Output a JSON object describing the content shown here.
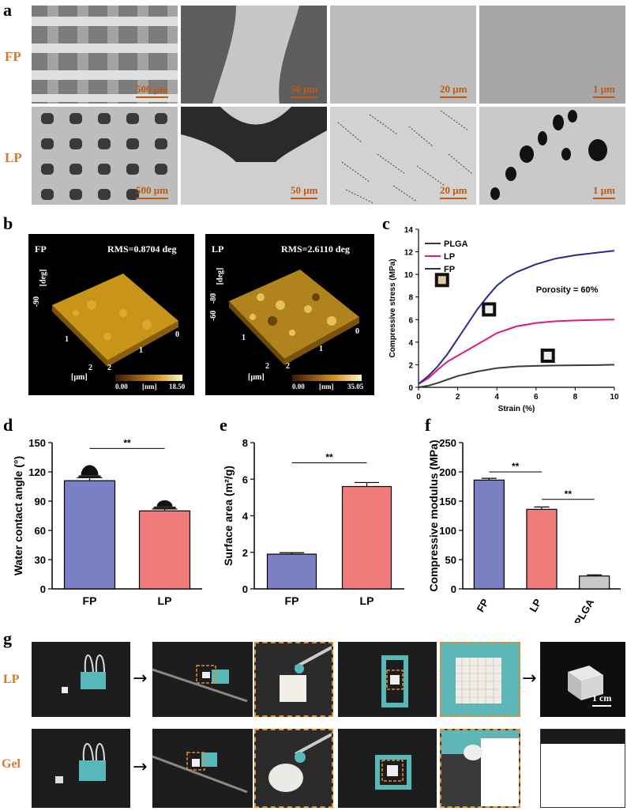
{
  "panels": {
    "a": "a",
    "b": "b",
    "c": "c",
    "d": "d",
    "e": "e",
    "f": "f",
    "g": "g"
  },
  "panel_a": {
    "rows": [
      {
        "label": "FP",
        "scales": [
          "500 μm",
          "50 μm",
          "20 μm",
          "1 μm"
        ]
      },
      {
        "label": "LP",
        "scales": [
          "500 μm",
          "50 μm",
          "20 μm",
          "1 μm"
        ]
      }
    ]
  },
  "panel_b": {
    "maps": [
      {
        "sample": "FP",
        "rms": "RMS=0.8704 deg",
        "zaxis": "-90",
        "zunit": "[deg]",
        "xy": [
          "0",
          "1",
          "2",
          "1",
          "2"
        ],
        "unit": "[μm]",
        "cb_min": "0.00",
        "cb_unit": "[nm]",
        "cb_max": "18.50"
      },
      {
        "sample": "LP",
        "rms": "RMS=2.6110 deg",
        "zaxis": "-80",
        "zunit": "[deg]",
        "zlow": "-60",
        "xy": [
          "0",
          "1",
          "2",
          "1",
          "2"
        ],
        "unit": "[μm]",
        "cb_min": "0.00",
        "cb_unit": "[nm]",
        "cb_max": "35.05"
      }
    ]
  },
  "panel_g": {
    "rows": [
      "LP",
      "Gel"
    ],
    "scalebar": "1 cm"
  },
  "chart_data": [
    {
      "id": "c",
      "type": "line",
      "xlabel": "Strain (%)",
      "ylabel": "Compressive stress (MPa)",
      "xlim": [
        0,
        10
      ],
      "ylim": [
        0,
        14
      ],
      "xticks": [
        0,
        2,
        4,
        6,
        8,
        10
      ],
      "yticks": [
        0,
        2,
        4,
        6,
        8,
        10,
        12,
        14
      ],
      "annotation": "Porosity = 60%",
      "legend_position": "top-left",
      "series": [
        {
          "name": "PLGA",
          "color": "#3a3a3a",
          "x": [
            0,
            0.5,
            1,
            1.5,
            2,
            3,
            4,
            5,
            6,
            7,
            8,
            9,
            10
          ],
          "y": [
            0,
            0.15,
            0.4,
            0.7,
            1.0,
            1.4,
            1.7,
            1.85,
            1.9,
            1.93,
            1.95,
            1.97,
            2.0
          ]
        },
        {
          "name": "LP",
          "color": "#e0197a",
          "x": [
            0,
            0.5,
            1,
            1.5,
            2,
            3,
            4,
            5,
            6,
            7,
            8,
            9,
            10
          ],
          "y": [
            0.3,
            0.8,
            1.6,
            2.3,
            2.8,
            3.8,
            4.8,
            5.4,
            5.7,
            5.85,
            5.92,
            5.97,
            6.0
          ]
        },
        {
          "name": "FP",
          "color": "#2a2a8c",
          "x": [
            0,
            0.5,
            1,
            1.5,
            2,
            2.5,
            3,
            3.5,
            4,
            4.5,
            5,
            6,
            7,
            8,
            9,
            10
          ],
          "y": [
            0.3,
            1.0,
            1.9,
            3.0,
            4.3,
            5.6,
            6.9,
            8.0,
            9.0,
            9.7,
            10.2,
            10.9,
            11.4,
            11.7,
            11.9,
            12.1
          ]
        }
      ]
    },
    {
      "id": "d",
      "type": "bar",
      "categories": [
        "FP",
        "LP"
      ],
      "values": [
        111,
        80
      ],
      "errors": [
        3,
        2
      ],
      "ylabel": "Water contact angle (°)",
      "ylim": [
        0,
        150
      ],
      "yticks": [
        0,
        30,
        60,
        90,
        120,
        150
      ],
      "colors": [
        "#7b7fc4",
        "#f07b7b"
      ],
      "significance": [
        "**"
      ]
    },
    {
      "id": "e",
      "type": "bar",
      "categories": [
        "FP",
        "LP"
      ],
      "values": [
        1.9,
        5.6
      ],
      "errors": [
        0.08,
        0.22
      ],
      "ylabel": "Surface area (m²/g)",
      "ylim": [
        0,
        8
      ],
      "yticks": [
        0,
        2,
        4,
        6,
        8
      ],
      "colors": [
        "#7b7fc4",
        "#f07b7b"
      ],
      "significance": [
        "**"
      ]
    },
    {
      "id": "f",
      "type": "bar",
      "categories": [
        "FP",
        "LP",
        "PLGA"
      ],
      "values": [
        186,
        136,
        22
      ],
      "errors": [
        3,
        4,
        2
      ],
      "ylabel": "Compressive modulus (MPa)",
      "ylim": [
        0,
        250
      ],
      "yticks": [
        0,
        50,
        100,
        150,
        200,
        250
      ],
      "colors": [
        "#7b7fc4",
        "#f07b7b",
        "#c8c8c8"
      ],
      "significance": [
        "**",
        "**"
      ]
    }
  ]
}
